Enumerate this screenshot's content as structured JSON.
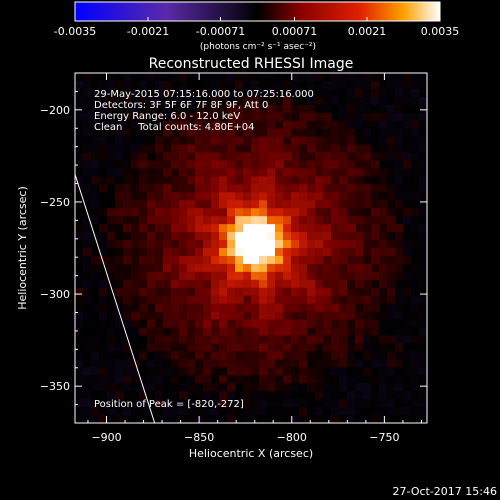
{
  "chart_data": {
    "type": "heatmap",
    "title": "Reconstructed RHESSI Image",
    "xlabel": "Heliocentric X (arcsec)",
    "ylabel": "Heliocentric Y (arcsec)",
    "xlim": [
      -917,
      -727
    ],
    "ylim": [
      -370,
      -180
    ],
    "x_ticks": [
      -900,
      -850,
      -800,
      -750
    ],
    "y_ticks": [
      -200,
      -250,
      -300,
      -350
    ],
    "peak": [
      -820,
      -272
    ],
    "colorbar": {
      "min": -0.0035,
      "max": 0.0035,
      "ticks": [
        "-0.0035",
        "-0.0021",
        "-0.00071",
        "0.00071",
        "0.0021",
        "0.0035"
      ],
      "units_label": "(photons cm⁻² s⁻¹ asec⁻²)"
    },
    "limb_line": {
      "x": [
        -917,
        -874
      ],
      "y": [
        -235,
        -370
      ]
    }
  },
  "info": {
    "line1": "29-May-2015 07:15:16.000 to 07:25:16.000",
    "line2": "Detectors: 3F 5F 6F 7F 8F 9F, Att 0",
    "line3": "Energy Range: 6.0 - 12.0 keV",
    "line4": "Clean     Total counts: 4.80E+04",
    "peak_label": "Position of Peak = [-820,-272]"
  },
  "footer_timestamp": "27-Oct-2017 15:46"
}
